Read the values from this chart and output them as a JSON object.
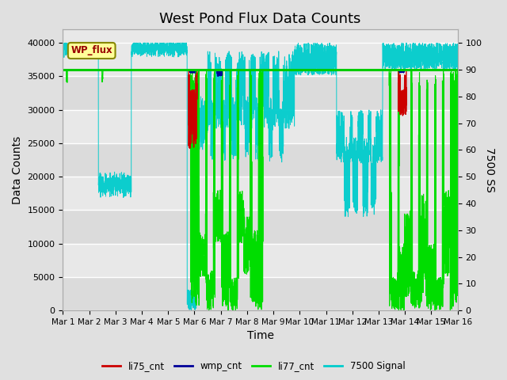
{
  "title": "West Pond Flux Data Counts",
  "xlabel": "Time",
  "ylabel": "Data Counts",
  "ylabel_right": "7500 SS",
  "annotation_text": "WP_flux",
  "ylim_left": [
    0,
    42000
  ],
  "ylim_right": [
    0,
    105
  ],
  "xlim": [
    0,
    15
  ],
  "yticks_left": [
    0,
    5000,
    10000,
    15000,
    20000,
    25000,
    30000,
    35000,
    40000
  ],
  "yticks_right": [
    0,
    10,
    20,
    30,
    40,
    50,
    60,
    70,
    80,
    90,
    100
  ],
  "xtick_labels": [
    "Mar 1",
    "Mar 2",
    "Mar 3",
    "Mar 4",
    "Mar 5",
    "Mar 6",
    "Mar 7",
    "Mar 8",
    "Mar 9",
    "Mar 10",
    "Mar 11",
    "Mar 12",
    "Mar 13",
    "Mar 14",
    "Mar 15",
    "Mar 16"
  ],
  "fig_bg_color": "#e0e0e0",
  "plot_bg_color": "#e8e8e8",
  "li75_color": "#cc0000",
  "wmp_color": "#000099",
  "li77_color": "#00dd00",
  "signal_color": "#00cccc",
  "hline_value": 36000,
  "hline_color": "#00cc00",
  "title_fontsize": 13,
  "figsize": [
    6.4,
    4.8
  ],
  "dpi": 100
}
